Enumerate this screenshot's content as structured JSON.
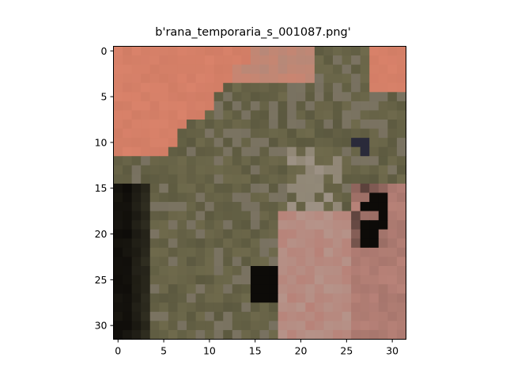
{
  "title": "b'rana_temporaria_s_001087.png'",
  "image": {
    "subject": "pixelated 32x32 photo of a frog (Rana temporaria) on a reddish surface",
    "grid_size": 32,
    "colors": {
      "background_salmon": "#d9826a",
      "background_salmon_dark": "#c87760",
      "frog_olive": "#6f6a4c",
      "frog_olive_dark": "#55533b",
      "frog_grey_highlight": "#9a8e84",
      "frog_pale_patch": "#b3a59b",
      "eye_dark": "#2a2a3a",
      "shadow_black": "#0d0b08",
      "lower_right_pink": "#b88278"
    }
  },
  "axes": {
    "x_ticks": [
      "0",
      "5",
      "10",
      "15",
      "20",
      "25",
      "30"
    ],
    "y_ticks": [
      "0",
      "5",
      "10",
      "15",
      "20",
      "25",
      "30"
    ],
    "x_range": [
      -0.5,
      31.5
    ],
    "y_range": [
      -0.5,
      31.5
    ]
  }
}
